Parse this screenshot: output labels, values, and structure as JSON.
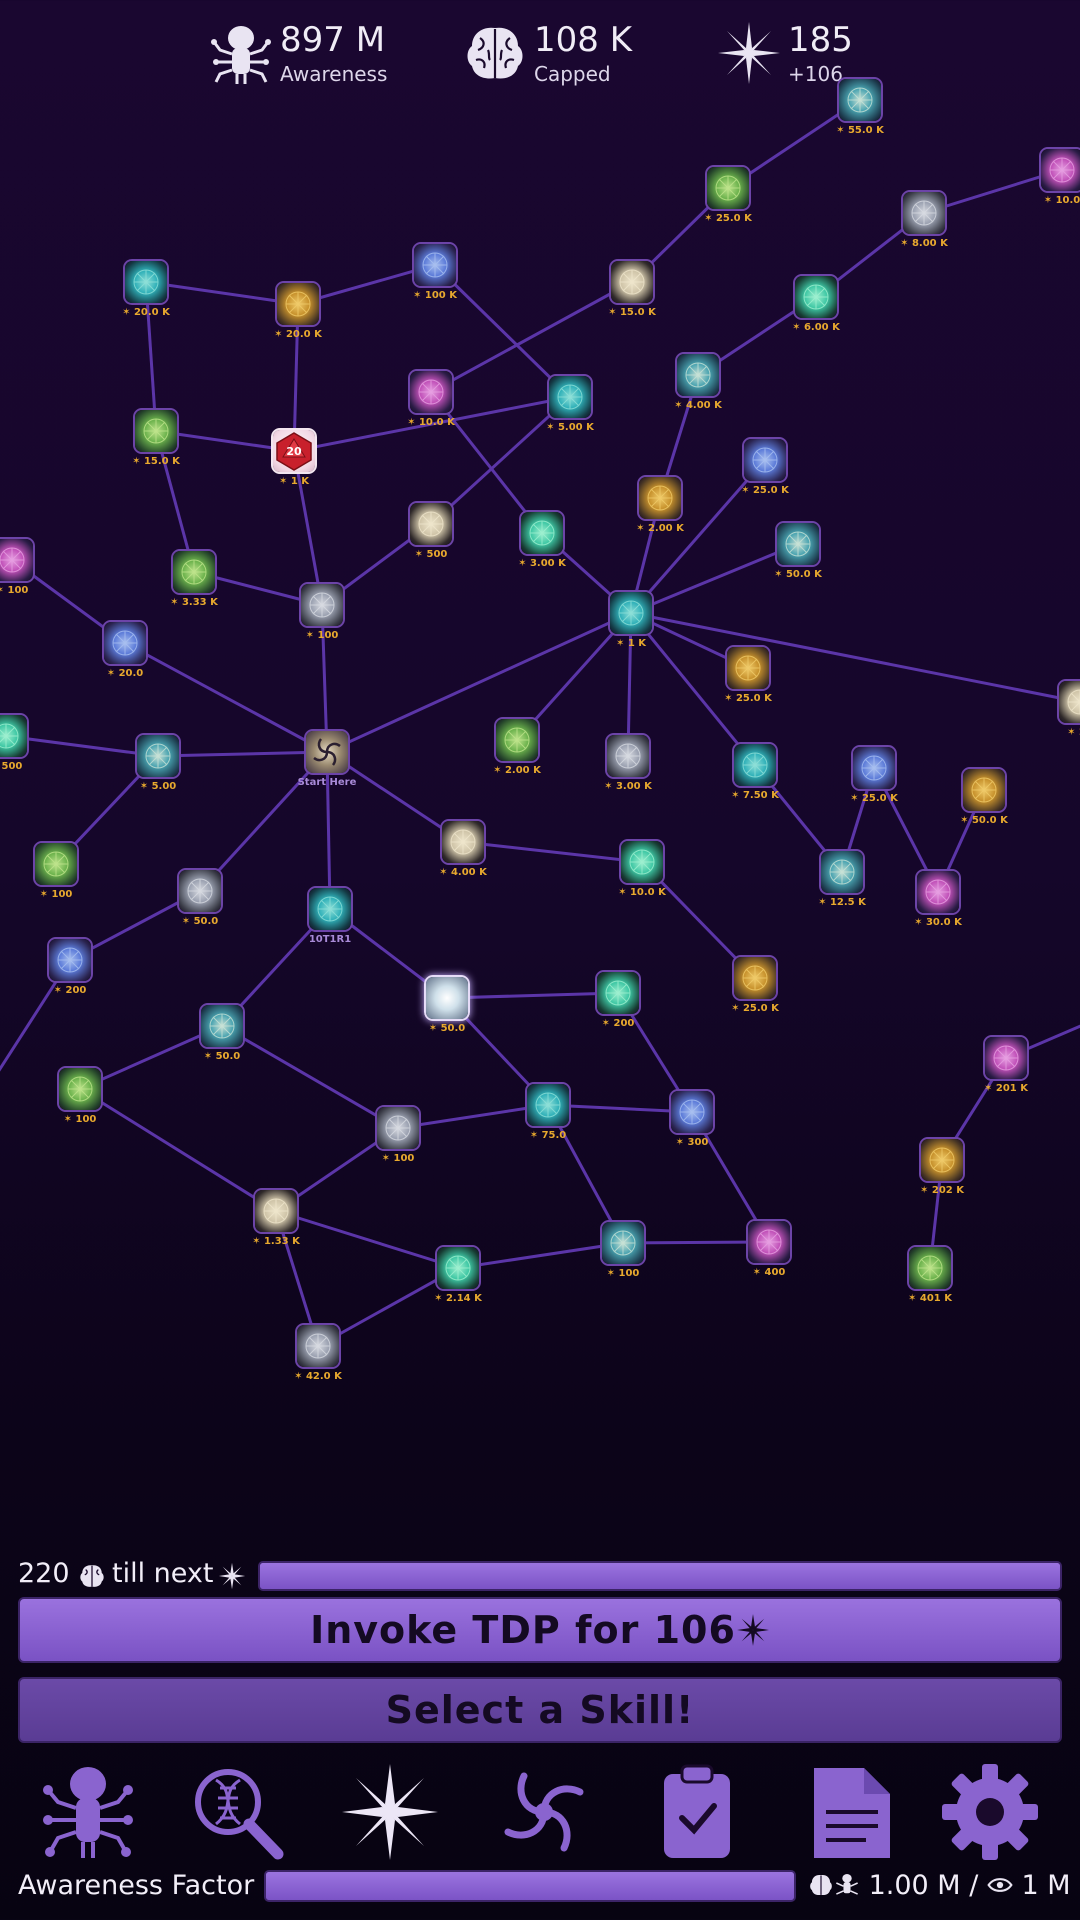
{
  "resources": {
    "awareness": {
      "value": "897 M",
      "label": "Awareness"
    },
    "brain": {
      "value": "108 K",
      "label": "Capped"
    },
    "star": {
      "value": "185",
      "label": "+106"
    }
  },
  "tree": {
    "nodes": [
      {
        "id": "n1",
        "cost": "55.0 K"
      },
      {
        "id": "n2",
        "cost": "10.0"
      },
      {
        "id": "n3",
        "cost": "25.0 K"
      },
      {
        "id": "n4",
        "cost": "8.00 K"
      },
      {
        "id": "n5",
        "cost": "20.0 K"
      },
      {
        "id": "n6",
        "cost": "100 K"
      },
      {
        "id": "n7",
        "cost": "20.0 K"
      },
      {
        "id": "n8",
        "cost": "15.0 K"
      },
      {
        "id": "n9",
        "cost": "6.00 K"
      },
      {
        "id": "n10",
        "cost": "4.00 K"
      },
      {
        "id": "n11",
        "cost": "10.0 K"
      },
      {
        "id": "n12",
        "cost": "15.0 K"
      },
      {
        "id": "n13",
        "cost": "1 K"
      },
      {
        "id": "n14",
        "cost": "5.00 K"
      },
      {
        "id": "n15",
        "cost": "25.0 K"
      },
      {
        "id": "n16",
        "cost": "2.00 K"
      },
      {
        "id": "n17",
        "cost": "500"
      },
      {
        "id": "n18",
        "cost": "3.00 K"
      },
      {
        "id": "n19",
        "cost": "50.0 K"
      },
      {
        "id": "n20",
        "cost": "100"
      },
      {
        "id": "n21",
        "cost": "3.33 K"
      },
      {
        "id": "n22",
        "cost": "100"
      },
      {
        "id": "n23",
        "cost": "1 K"
      },
      {
        "id": "n24",
        "cost": "20.0"
      },
      {
        "id": "n25",
        "cost": "25.0 K"
      },
      {
        "id": "n26",
        "cost": "20"
      },
      {
        "id": "n27",
        "cost": "500"
      },
      {
        "id": "n28",
        "cost": "5.00"
      },
      {
        "id": "n29",
        "cost": "Start Here"
      },
      {
        "id": "n30",
        "cost": "2.00 K"
      },
      {
        "id": "n31",
        "cost": "3.00 K"
      },
      {
        "id": "n32",
        "cost": "7.50 K"
      },
      {
        "id": "n33",
        "cost": "25.0 K"
      },
      {
        "id": "n34",
        "cost": "50.0 K"
      },
      {
        "id": "n35",
        "cost": "4.00 K"
      },
      {
        "id": "n36",
        "cost": "10.0 K"
      },
      {
        "id": "n37",
        "cost": "12.5 K"
      },
      {
        "id": "n38",
        "cost": "30.0 K"
      },
      {
        "id": "n39",
        "cost": "100"
      },
      {
        "id": "n40",
        "cost": "50.0"
      },
      {
        "id": "n41",
        "cost": "10T1R1"
      },
      {
        "id": "n42",
        "cost": "200"
      },
      {
        "id": "n43",
        "cost": "25.0 K"
      },
      {
        "id": "n44",
        "cost": "50.0"
      },
      {
        "id": "n45",
        "cost": "200"
      },
      {
        "id": "n46",
        "cost": "50.0"
      },
      {
        "id": "n47",
        "cost": "201 K"
      },
      {
        "id": "n48",
        "cost": "100"
      },
      {
        "id": "n49",
        "cost": "100"
      },
      {
        "id": "n50",
        "cost": "75.0"
      },
      {
        "id": "n51",
        "cost": "300"
      },
      {
        "id": "n52",
        "cost": "202 K"
      },
      {
        "id": "n53",
        "cost": "1.33 K"
      },
      {
        "id": "n54",
        "cost": "2.14 K"
      },
      {
        "id": "n55",
        "cost": "100"
      },
      {
        "id": "n56",
        "cost": "400"
      },
      {
        "id": "n57",
        "cost": "401 K"
      },
      {
        "id": "n58",
        "cost": "42.0 K"
      }
    ]
  },
  "progress": {
    "till_count": "220",
    "till_text": "till next",
    "next_fill": 1.0
  },
  "buttons": {
    "invoke_label": "Invoke TDP for 106",
    "select_label": "Select a Skill!"
  },
  "nav": [
    {
      "name": "awareness"
    },
    {
      "name": "research"
    },
    {
      "name": "star"
    },
    {
      "name": "spiral"
    },
    {
      "name": "clipboard"
    },
    {
      "name": "document"
    },
    {
      "name": "settings"
    }
  ],
  "footer": {
    "label": "Awareness Factor",
    "fill": 1.0,
    "value_a": "1.00 M",
    "value_b": "1 M"
  },
  "colors": {
    "accent": "#8c63d6",
    "line": "#5b35a8",
    "cost_gold": "#e8a92e",
    "cost_lavender": "#a98bd8"
  }
}
